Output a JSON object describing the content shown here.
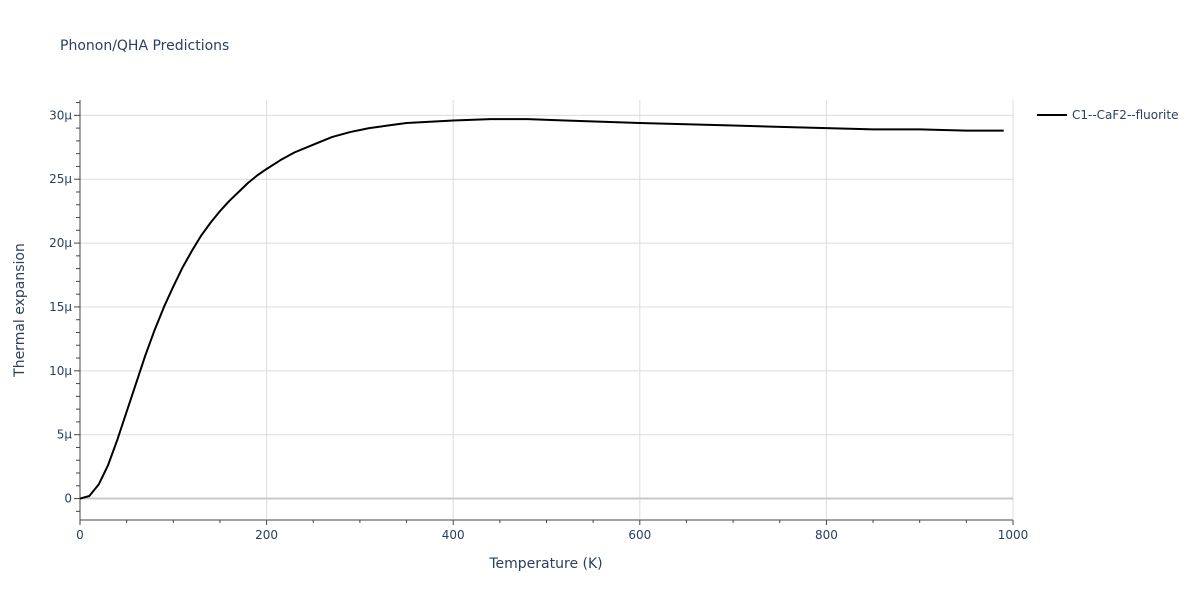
{
  "chart_data": {
    "type": "line",
    "title": "Phonon/QHA Predictions",
    "xlabel": "Temperature (K)",
    "ylabel": "Thermal expansion",
    "xlim": [
      0,
      1000
    ],
    "ylim": [
      -1.6e-06,
      3.12e-05
    ],
    "x_ticks": [
      0,
      200,
      400,
      600,
      800,
      1000
    ],
    "x_tick_labels": [
      "0",
      "200",
      "400",
      "600",
      "800",
      "1000"
    ],
    "y_ticks": [
      0,
      5e-06,
      1e-05,
      1.5e-05,
      2e-05,
      2.5e-05,
      3e-05
    ],
    "y_tick_labels": [
      "0",
      "5μ",
      "10μ",
      "15μ",
      "20μ",
      "25μ",
      "30μ"
    ],
    "grid": true,
    "legend_position": "top-right",
    "series": [
      {
        "name": "C1--CaF2--fluorite",
        "color": "#000000",
        "x": [
          0,
          10,
          20,
          30,
          40,
          50,
          60,
          70,
          80,
          90,
          100,
          110,
          120,
          130,
          140,
          150,
          160,
          170,
          180,
          190,
          200,
          215,
          230,
          250,
          270,
          290,
          310,
          330,
          350,
          375,
          400,
          440,
          480,
          520,
          560,
          600,
          650,
          700,
          750,
          800,
          850,
          900,
          950,
          990
        ],
        "y": [
          0,
          2e-07,
          1.1e-06,
          2.6e-06,
          4.6e-06,
          6.8e-06,
          9e-06,
          1.12e-05,
          1.32e-05,
          1.5e-05,
          1.66e-05,
          1.81e-05,
          1.94e-05,
          2.06e-05,
          2.16e-05,
          2.25e-05,
          2.33e-05,
          2.4e-05,
          2.47e-05,
          2.53e-05,
          2.58e-05,
          2.65e-05,
          2.71e-05,
          2.77e-05,
          2.83e-05,
          2.87e-05,
          2.9e-05,
          2.92e-05,
          2.94e-05,
          2.95e-05,
          2.96e-05,
          2.97e-05,
          2.97e-05,
          2.96e-05,
          2.95e-05,
          2.94e-05,
          2.93e-05,
          2.92e-05,
          2.91e-05,
          2.9e-05,
          2.89e-05,
          2.89e-05,
          2.88e-05,
          2.88e-05
        ]
      }
    ]
  }
}
